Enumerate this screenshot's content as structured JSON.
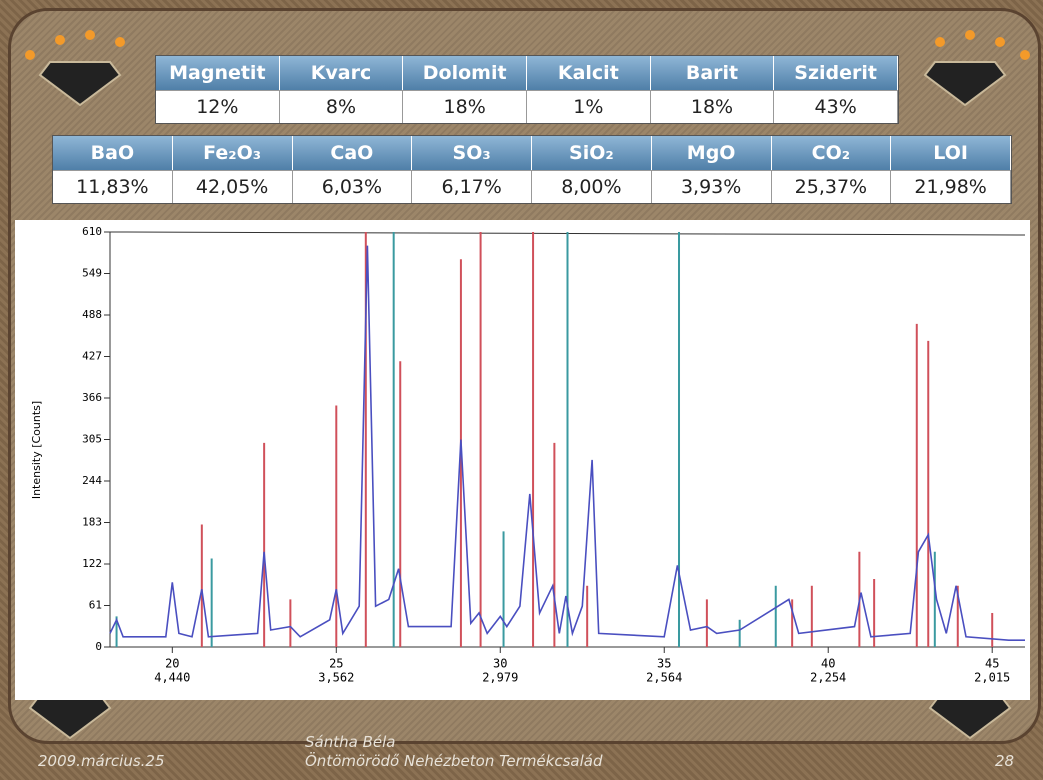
{
  "minerals": {
    "headers": [
      "Magnetit",
      "Kvarc",
      "Dolomit",
      "Kalcit",
      "Barit",
      "Sziderit"
    ],
    "values": [
      "12%",
      "8%",
      "18%",
      "1%",
      "18%",
      "43%"
    ]
  },
  "oxides": {
    "headers": [
      "BaO",
      "Fe₂O₃",
      "CaO",
      "SO₃",
      "SiO₂",
      "MgO",
      "CO₂",
      "LOI"
    ],
    "values": [
      "11,83%",
      "42,05%",
      "6,03%",
      "6,17%",
      "8,00%",
      "3,93%",
      "25,37%",
      "21,98%"
    ]
  },
  "chart_data": {
    "type": "line",
    "y_label": "Intensity [Counts]",
    "xlim": [
      18.1,
      46
    ],
    "xticks": [
      20,
      25,
      30,
      35,
      40,
      45
    ],
    "xtick_dspacing": [
      "4,440",
      "3,562",
      "2,979",
      "2,564",
      "2,254",
      "2,015"
    ],
    "ylim": [
      0,
      610
    ],
    "yticks": [
      0,
      61,
      122,
      183,
      244,
      305,
      366,
      427,
      488,
      549,
      610
    ],
    "series": [
      {
        "color": "#4a4fc0",
        "x": [
          18.1,
          18.3,
          18.5,
          19.8,
          20.0,
          20.2,
          20.6,
          20.9,
          21.1,
          22.6,
          22.8,
          23.0,
          23.6,
          23.9,
          24.8,
          25.0,
          25.2,
          25.7,
          25.95,
          26.2,
          26.6,
          26.9,
          27.2,
          28.5,
          28.8,
          29.1,
          29.35,
          29.6,
          30.0,
          30.2,
          30.6,
          30.9,
          31.2,
          31.6,
          31.8,
          32.0,
          32.2,
          32.5,
          32.8,
          33.0,
          35.0,
          35.4,
          35.8,
          36.3,
          36.6,
          37.3,
          38.8,
          39.1,
          40.8,
          41.0,
          41.3,
          42.5,
          42.75,
          43.05,
          43.3,
          43.6,
          43.9,
          44.2,
          45.5,
          46
        ],
        "values": [
          20,
          40,
          15,
          15,
          95,
          20,
          15,
          85,
          15,
          20,
          140,
          25,
          30,
          15,
          40,
          85,
          20,
          60,
          590,
          60,
          70,
          115,
          30,
          30,
          305,
          35,
          50,
          20,
          45,
          30,
          60,
          225,
          50,
          90,
          20,
          75,
          20,
          60,
          275,
          20,
          15,
          120,
          25,
          30,
          20,
          25,
          70,
          20,
          30,
          80,
          15,
          20,
          140,
          165,
          70,
          20,
          90,
          15,
          10,
          10
        ]
      }
    ],
    "peaks": [
      {
        "color": "#d0505a",
        "x": [
          20.9,
          22.8,
          23.6,
          25.0,
          25.9,
          26.95,
          28.8,
          29.4,
          31.0,
          31.65,
          32.65,
          36.3,
          38.9,
          39.5,
          40.95,
          41.4,
          42.7,
          43.05,
          43.95,
          45.0
        ],
        "values": [
          180,
          300,
          70,
          355,
          610,
          420,
          570,
          610,
          610,
          300,
          90,
          70,
          70,
          90,
          140,
          100,
          475,
          450,
          90,
          50
        ]
      },
      {
        "color": "#3a9aa0",
        "x": [
          18.3,
          21.2,
          26.75,
          30.1,
          32.05,
          35.45,
          37.3,
          38.4,
          43.25
        ],
        "values": [
          45,
          130,
          610,
          170,
          610,
          610,
          40,
          90,
          140
        ]
      }
    ]
  },
  "footer": {
    "date": "2009.március.25",
    "author": "Sántha Béla",
    "title": "Öntömörödő Nehézbeton Termékcsalád",
    "page": "28"
  }
}
